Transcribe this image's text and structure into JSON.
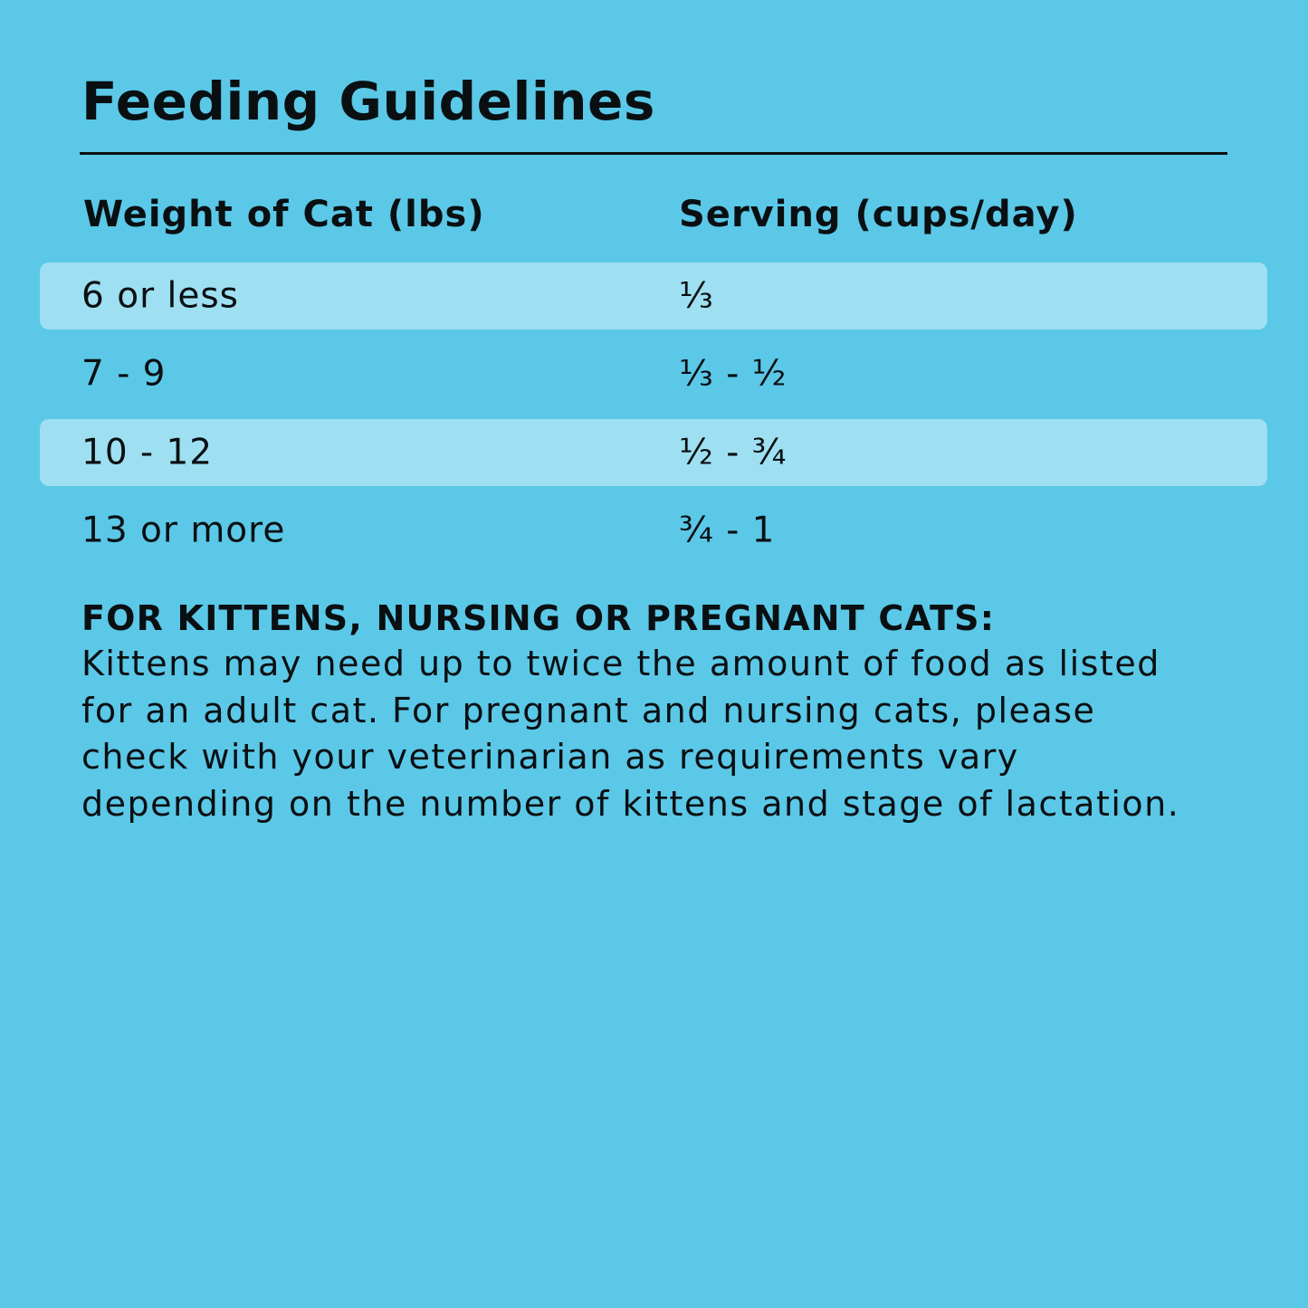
{
  "title": "Feeding Guidelines",
  "colors": {
    "background": "#5BC8E7",
    "row_highlight": "#9EE0F1",
    "text": "#0a0f12"
  },
  "table": {
    "headers": [
      "Weight of Cat (lbs)",
      "Serving (cups/day)"
    ],
    "rows": [
      {
        "weight": "6 or less",
        "serving": "⅓"
      },
      {
        "weight": "7 - 9",
        "serving": "⅓ - ½"
      },
      {
        "weight": "10 - 12",
        "serving": "½ - ¾"
      },
      {
        "weight": "13 or more",
        "serving": "¾ - 1"
      }
    ]
  },
  "note": {
    "heading": "FOR KITTENS, NURSING OR PREGNANT CATS:",
    "body": "Kittens may need up to twice the amount of food as listed for an adult cat. For pregnant and nursing cats, please check with your veterinarian as requirements vary depending on the number of kittens and stage of lactation."
  }
}
